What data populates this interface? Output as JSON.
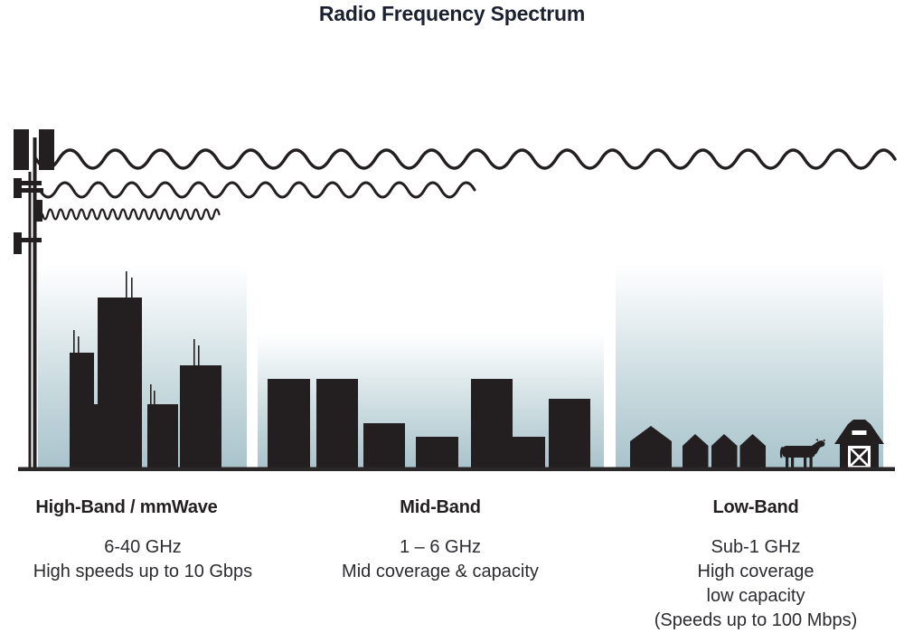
{
  "title": "Radio Frequency Spectrum",
  "colors": {
    "ink": "#231f20",
    "text": "#2c2b30",
    "title_text": "#1b2130",
    "sky_top": "#ffffff",
    "sky_bottom": "#a9c3cc",
    "baseline": "#2b2728"
  },
  "sections": [
    {
      "id": "high-band",
      "heading": "High-Band / mmWave",
      "lines": [
        "6-40 GHz",
        "High speeds up to 10 Gbps"
      ]
    },
    {
      "id": "mid-band",
      "heading": "Mid-Band",
      "lines": [
        "1 – 6 GHz",
        "Mid coverage & capacity"
      ]
    },
    {
      "id": "low-band",
      "heading": "Low-Band",
      "lines": [
        "Sub-1 GHz",
        "High coverage",
        "low capacity",
        "(Speeds up to 100 Mbps)"
      ]
    }
  ],
  "waves": [
    {
      "name": "low-band-wave",
      "x": 40,
      "centerY": 176,
      "amplitude": 10,
      "wavelength": 50,
      "halfWaves": 38,
      "strokeWidth": 3.5
    },
    {
      "name": "mid-band-wave",
      "x": 44,
      "centerY": 210,
      "amplitude": 8,
      "wavelength": 37,
      "halfWaves": 26,
      "strokeWidth": 3
    },
    {
      "name": "high-band-wave",
      "x": 47,
      "centerY": 237,
      "amplitude": 5.5,
      "wavelength": 11.5,
      "halfWaves": 34,
      "strokeWidth": 2.3
    }
  ]
}
